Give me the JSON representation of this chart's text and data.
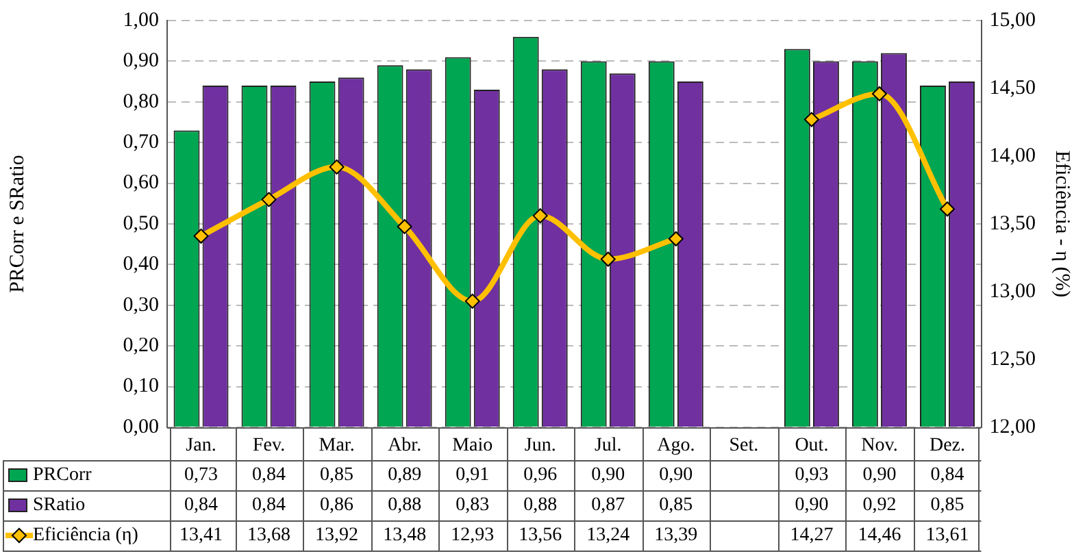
{
  "chart_data": {
    "type": "bar",
    "categories": [
      "Jan.",
      "Fev.",
      "Mar.",
      "Abr.",
      "Maio",
      "Jun.",
      "Jul.",
      "Ago.",
      "Set.",
      "Out.",
      "Nov.",
      "Dez."
    ],
    "ylabel": "PRCorr e SRatio",
    "y2label": "Eficiência - η (%)",
    "ylim": [
      0,
      1
    ],
    "yticks": [
      {
        "value": 0,
        "label": "0,00"
      },
      {
        "value": 0.1,
        "label": "0,10"
      },
      {
        "value": 0.2,
        "label": "0,20"
      },
      {
        "value": 0.3,
        "label": "0,30"
      },
      {
        "value": 0.4,
        "label": "0,40"
      },
      {
        "value": 0.5,
        "label": "0,50"
      },
      {
        "value": 0.6,
        "label": "0,60"
      },
      {
        "value": 0.7,
        "label": "0,70"
      },
      {
        "value": 0.8,
        "label": "0,80"
      },
      {
        "value": 0.9,
        "label": "0,90"
      },
      {
        "value": 1,
        "label": "1,00"
      }
    ],
    "y2lim": [
      12,
      15
    ],
    "y2ticks": [
      {
        "value": 12,
        "label": "12,00"
      },
      {
        "value": 12.5,
        "label": "12,50"
      },
      {
        "value": 13,
        "label": "13,00"
      },
      {
        "value": 13.5,
        "label": "13,50"
      },
      {
        "value": 14,
        "label": "14,00"
      },
      {
        "value": 14.5,
        "label": "14,50"
      },
      {
        "value": 15,
        "label": "15,00"
      }
    ],
    "grid": "y",
    "legend": "bottom",
    "series": [
      {
        "name": "PRCorr",
        "color": "#00a651",
        "values": [
          0.73,
          0.84,
          0.85,
          0.89,
          0.91,
          0.96,
          0.9,
          0.9,
          null,
          0.93,
          0.9,
          0.84
        ],
        "value_labels": [
          "0,73",
          "0,84",
          "0,85",
          "0,89",
          "0,91",
          "0,96",
          "0,90",
          "0,90",
          null,
          "0,93",
          "0,90",
          "0,84"
        ]
      },
      {
        "name": "SRatio",
        "color": "#7030a0",
        "values": [
          0.84,
          0.84,
          0.86,
          0.88,
          0.83,
          0.88,
          0.87,
          0.85,
          null,
          0.9,
          0.92,
          0.85
        ],
        "value_labels": [
          "0,84",
          "0,84",
          "0,86",
          "0,88",
          "0,83",
          "0,88",
          "0,87",
          "0,85",
          null,
          "0,90",
          "0,92",
          "0,85"
        ]
      },
      {
        "name": "Eficiência (η)",
        "type": "line",
        "axis": "y2",
        "color": "#ffc000",
        "marker": "diamond",
        "values": [
          13.41,
          13.68,
          13.92,
          13.48,
          12.93,
          13.56,
          13.24,
          13.39,
          null,
          14.27,
          14.46,
          13.61
        ],
        "value_labels": [
          "13,41",
          "13,68",
          "13,92",
          "13,48",
          "12,93",
          "13,56",
          "13,24",
          "13,39",
          null,
          "14,27",
          "14,46",
          "13,61"
        ]
      }
    ]
  }
}
